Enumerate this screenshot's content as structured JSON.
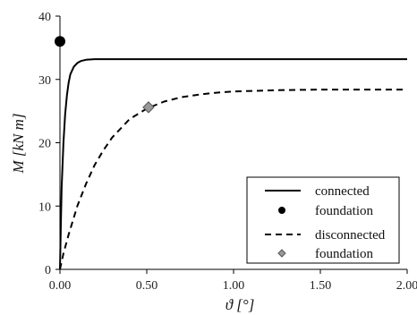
{
  "chart_data": {
    "type": "line",
    "xlabel": "ϑ [°]",
    "ylabel": "M [kN m]",
    "xlim": [
      0,
      2.0
    ],
    "ylim": [
      0,
      40
    ],
    "x_ticks": [
      "0.00",
      "0.50",
      "1.00",
      "1.50",
      "2.00"
    ],
    "y_ticks": [
      "0",
      "10",
      "20",
      "30",
      "40"
    ],
    "grid": false,
    "legend_position": "bottom-right",
    "series": [
      {
        "name": "connected",
        "style": "solid",
        "color": "#000000",
        "x": [
          0,
          0.005,
          0.01,
          0.02,
          0.03,
          0.04,
          0.05,
          0.06,
          0.08,
          0.1,
          0.12,
          0.15,
          0.2,
          0.3,
          0.5,
          1.0,
          1.5,
          2.0
        ],
        "y": [
          0,
          7,
          13,
          20,
          24.5,
          27.5,
          29.5,
          30.8,
          32.0,
          32.6,
          32.9,
          33.1,
          33.2,
          33.2,
          33.2,
          33.2,
          33.2,
          33.2
        ]
      },
      {
        "name": "disconnected",
        "style": "dashed",
        "color": "#000000",
        "x": [
          0,
          0.02,
          0.05,
          0.1,
          0.15,
          0.2,
          0.25,
          0.3,
          0.4,
          0.5,
          0.6,
          0.7,
          0.8,
          0.9,
          1.0,
          1.25,
          1.5,
          1.75,
          2.0
        ],
        "y": [
          0,
          2.5,
          5.5,
          10.0,
          13.5,
          16.5,
          18.8,
          20.8,
          23.7,
          25.4,
          26.5,
          27.2,
          27.6,
          27.9,
          28.1,
          28.3,
          28.4,
          28.4,
          28.4
        ]
      }
    ],
    "markers": [
      {
        "name": "foundation",
        "shape": "circle",
        "color": "#000000",
        "x": 0.0,
        "y": 36.0
      },
      {
        "name": "foundation",
        "shape": "diamond",
        "color": "#999999",
        "x": 0.51,
        "y": 25.6
      }
    ],
    "legend": [
      {
        "label": "connected",
        "symbol": "solid-line"
      },
      {
        "label": "foundation",
        "symbol": "circle"
      },
      {
        "label": "disconnected",
        "symbol": "dashed-line"
      },
      {
        "label": "foundation",
        "symbol": "diamond"
      }
    ]
  }
}
